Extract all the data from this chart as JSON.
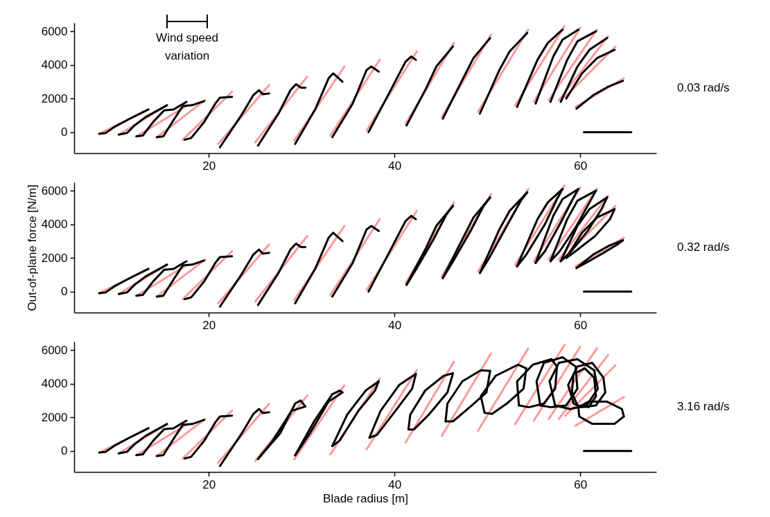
{
  "chart_data": [
    {
      "type": "line",
      "annotations": [
        "0.03 rad/s",
        "Wind speed variation"
      ],
      "xlim": [
        5.5,
        68.2
      ],
      "ylim": [
        -1250,
        6500
      ],
      "xticks": [
        20,
        40,
        60
      ],
      "yticks": [
        0,
        2000,
        4000,
        6000
      ],
      "series": [
        {
          "color": "#ff9999",
          "x": [
            8.2,
            13.5,
            null,
            10.3,
            15.5,
            null,
            12.2,
            17.7,
            null,
            14.4,
            19.6,
            null,
            17.2,
            22.5,
            null,
            21,
            26.5,
            null,
            25,
            30.6,
            null,
            29.2,
            34.6,
            null,
            33.1,
            38.4,
            null,
            37,
            42.4,
            null,
            41.2,
            46.4,
            null,
            45.1,
            50.4,
            null,
            49,
            54.4,
            null,
            53,
            58.3,
            null,
            55,
            60,
            null,
            56.6,
            61.8,
            null,
            57.7,
            63,
            null,
            58.4,
            63.8,
            null,
            59.5,
            64.7
          ],
          "values": [
            -100,
            1350,
            null,
            -150,
            1600,
            null,
            -250,
            1600,
            null,
            -300,
            1900,
            null,
            -450,
            2400,
            null,
            -700,
            2800,
            null,
            -600,
            3300,
            null,
            -500,
            3900,
            null,
            -200,
            4300,
            null,
            100,
            4800,
            null,
            500,
            5300,
            null,
            900,
            5800,
            null,
            1200,
            6100,
            null,
            1600,
            6300,
            null,
            1800,
            6200,
            null,
            1900,
            6100,
            null,
            1900,
            5700,
            null,
            2100,
            5100,
            null,
            1500,
            3200
          ]
        },
        {
          "color": "#000000",
          "x": [
            8.2,
            8.9,
            9.8,
            11.5,
            13.5
          ],
          "values": [
            -100,
            -50,
            300,
            800,
            1350
          ]
        },
        {
          "color": "#000000",
          "x": [
            10.3,
            11.2,
            12.0,
            13.2,
            15.5
          ],
          "values": [
            -150,
            -50,
            400,
            900,
            1600
          ]
        },
        {
          "color": "#000000",
          "x": [
            12.2,
            12.9,
            14.0,
            15.2,
            16.2,
            17.6
          ],
          "values": [
            -250,
            -200,
            600,
            1300,
            1350,
            1800
          ]
        },
        {
          "color": "#000000",
          "x": [
            14.4,
            15.1,
            16.3,
            17.2,
            18.2,
            19.5
          ],
          "values": [
            -300,
            -250,
            800,
            1550,
            1600,
            1850
          ]
        },
        {
          "color": "#000000",
          "x": [
            17.4,
            18.1,
            19.5,
            20.7,
            21.2,
            22.5
          ],
          "values": [
            -450,
            -350,
            600,
            1700,
            2050,
            2100
          ]
        },
        {
          "color": "#000000",
          "x": [
            21.2,
            23.5,
            24.8,
            25.4,
            25.8,
            26.5
          ],
          "values": [
            -900,
            1000,
            2200,
            2500,
            2250,
            2300
          ]
        },
        {
          "color": "#000000",
          "x": [
            25.3,
            27.5,
            28.8,
            29.4,
            29.9,
            30.4
          ],
          "values": [
            -800,
            1100,
            2500,
            2850,
            2650,
            2650
          ]
        },
        {
          "color": "#000000",
          "x": [
            29.3,
            31.5,
            32.9,
            33.4,
            34.4
          ],
          "values": [
            -700,
            1400,
            3200,
            3500,
            3000
          ]
        },
        {
          "color": "#000000",
          "x": [
            33.3,
            35.5,
            37.0,
            37.5,
            38.3
          ],
          "values": [
            -300,
            1700,
            3700,
            3900,
            3600
          ]
        },
        {
          "color": "#000000",
          "x": [
            37.2,
            39.4,
            41.2,
            41.8,
            42.3
          ],
          "values": [
            0,
            2300,
            4200,
            4500,
            4300
          ]
        },
        {
          "color": "#000000",
          "x": [
            41.3,
            43.4,
            44.5,
            46.3
          ],
          "values": [
            400,
            2600,
            3900,
            5100
          ]
        },
        {
          "color": "#000000",
          "x": [
            45.2,
            47.3,
            48.5,
            50.3
          ],
          "values": [
            800,
            3100,
            4400,
            5600
          ]
        },
        {
          "color": "#000000",
          "x": [
            49.2,
            51.3,
            52.4,
            54.3
          ],
          "values": [
            1100,
            3700,
            4800,
            5900
          ]
        },
        {
          "color": "#000000",
          "x": [
            53.2,
            55.4,
            56.5,
            58.1
          ],
          "values": [
            1500,
            4300,
            5300,
            6100
          ]
        },
        {
          "color": "#000000",
          "x": [
            55.2,
            57.1,
            58.1,
            59.8
          ],
          "values": [
            1700,
            4500,
            5500,
            6100
          ]
        },
        {
          "color": "#000000",
          "x": [
            56.8,
            58.6,
            59.7,
            61.7
          ],
          "values": [
            1800,
            4300,
            5400,
            6000
          ]
        },
        {
          "color": "#000000",
          "x": [
            57.9,
            59.7,
            61.0,
            62.9
          ],
          "values": [
            1800,
            3900,
            4900,
            5600
          ]
        },
        {
          "color": "#000000",
          "x": [
            58.5,
            60.2,
            61.8,
            63.7
          ],
          "values": [
            2000,
            3500,
            4400,
            4900
          ]
        },
        {
          "color": "#000000",
          "x": [
            59.6,
            61.4,
            63.0,
            64.6
          ],
          "values": [
            1400,
            2200,
            2700,
            3050
          ]
        },
        {
          "color": "#000000",
          "x": [
            60.4,
            65.5
          ],
          "values": [
            0,
            0
          ]
        }
      ]
    },
    {
      "type": "line",
      "ylabel": "Out-of-plane force [N/m]",
      "annotations": [
        "0.32 rad/s"
      ],
      "xlim": [
        5.5,
        68.2
      ],
      "ylim": [
        -1250,
        6500
      ],
      "xticks": [
        20,
        40,
        60
      ],
      "yticks": [
        0,
        2000,
        4000,
        6000
      ],
      "series": [
        {
          "color": "#ff9999",
          "x": [
            8.2,
            13.5,
            null,
            10.3,
            15.5,
            null,
            12.2,
            17.7,
            null,
            14.4,
            19.6,
            null,
            17.2,
            22.5,
            null,
            21,
            26.5,
            null,
            25,
            30.6,
            null,
            29.2,
            34.6,
            null,
            33.1,
            38.4,
            null,
            37,
            42.4,
            null,
            41.2,
            46.4,
            null,
            45.1,
            50.4,
            null,
            49,
            54.4,
            null,
            53,
            58.3,
            null,
            55,
            60,
            null,
            56.6,
            61.8,
            null,
            57.7,
            63,
            null,
            58.4,
            63.8,
            null,
            59.5,
            64.7
          ],
          "values": [
            -100,
            1350,
            null,
            -150,
            1600,
            null,
            -250,
            1600,
            null,
            -300,
            1900,
            null,
            -450,
            2400,
            null,
            -700,
            2800,
            null,
            -600,
            3300,
            null,
            -500,
            3900,
            null,
            -200,
            4300,
            null,
            100,
            4800,
            null,
            500,
            5300,
            null,
            900,
            5800,
            null,
            1200,
            6100,
            null,
            1600,
            6300,
            null,
            1800,
            6200,
            null,
            1900,
            6100,
            null,
            1900,
            5700,
            null,
            2100,
            5100,
            null,
            1500,
            3200
          ]
        },
        {
          "color": "#000000",
          "x": [
            8.2,
            8.9,
            9.8,
            11.5,
            13.5
          ],
          "values": [
            -100,
            -50,
            300,
            800,
            1350
          ]
        },
        {
          "color": "#000000",
          "x": [
            10.3,
            11.2,
            12.0,
            13.2,
            15.5
          ],
          "values": [
            -150,
            -50,
            400,
            900,
            1600
          ]
        },
        {
          "color": "#000000",
          "x": [
            12.2,
            12.9,
            14.0,
            15.2,
            16.2,
            17.6
          ],
          "values": [
            -250,
            -200,
            600,
            1300,
            1350,
            1800
          ]
        },
        {
          "color": "#000000",
          "x": [
            14.4,
            15.1,
            16.3,
            17.2,
            18.2,
            19.5
          ],
          "values": [
            -300,
            -250,
            800,
            1550,
            1600,
            1850
          ]
        },
        {
          "color": "#000000",
          "x": [
            17.4,
            18.1,
            19.5,
            20.7,
            21.2,
            22.5
          ],
          "values": [
            -450,
            -350,
            600,
            1700,
            2050,
            2100
          ]
        },
        {
          "color": "#000000",
          "x": [
            21.2,
            23.5,
            24.8,
            25.4,
            25.8,
            26.5
          ],
          "values": [
            -900,
            1000,
            2200,
            2500,
            2250,
            2300
          ]
        },
        {
          "color": "#000000",
          "x": [
            25.3,
            27.5,
            28.8,
            29.4,
            29.9,
            30.4
          ],
          "values": [
            -800,
            1100,
            2500,
            2850,
            2650,
            2650
          ]
        },
        {
          "color": "#000000",
          "x": [
            29.3,
            31.5,
            32.9,
            33.4,
            34.4
          ],
          "values": [
            -700,
            1400,
            3200,
            3500,
            3000
          ]
        },
        {
          "color": "#000000",
          "x": [
            33.3,
            35.5,
            37.0,
            37.5,
            38.3
          ],
          "values": [
            -300,
            1700,
            3700,
            3900,
            3600
          ]
        },
        {
          "color": "#000000",
          "x": [
            37.2,
            39.4,
            41.2,
            41.8,
            42.3
          ],
          "values": [
            0,
            2300,
            4200,
            4500,
            4300
          ]
        },
        {
          "color": "#000000",
          "x": [
            41.3,
            43.4,
            44.5,
            46.3
          ],
          "values": [
            400,
            2600,
            3900,
            5100
          ]
        },
        {
          "color": "#000000",
          "x": [
            46.3,
            45.6,
            44.2,
            42.3,
            41.3
          ],
          "values": [
            5100,
            4600,
            3100,
            1300,
            400
          ]
        },
        {
          "color": "#000000",
          "x": [
            45.2,
            47.3,
            48.5,
            50.3
          ],
          "values": [
            800,
            3100,
            4400,
            5600
          ]
        },
        {
          "color": "#000000",
          "x": [
            50.3,
            49.6,
            48.2,
            46.2,
            45.2
          ],
          "values": [
            5600,
            5100,
            3600,
            1700,
            800
          ]
        },
        {
          "color": "#000000",
          "x": [
            49.2,
            51.3,
            52.4,
            54.3
          ],
          "values": [
            1100,
            3700,
            4800,
            5900
          ]
        },
        {
          "color": "#000000",
          "x": [
            54.3,
            53.6,
            52.2,
            50.2,
            49.2
          ],
          "values": [
            5900,
            5400,
            4000,
            2000,
            1100
          ]
        },
        {
          "color": "#000000",
          "x": [
            53.2,
            55.4,
            56.5,
            58.1
          ],
          "values": [
            1500,
            4300,
            5300,
            6100
          ]
        },
        {
          "color": "#000000",
          "x": [
            58.1,
            57.5,
            56.2,
            54.2,
            53.2
          ],
          "values": [
            6100,
            5500,
            4000,
            2200,
            1500
          ]
        },
        {
          "color": "#000000",
          "x": [
            55.2,
            57.1,
            58.1,
            59.8
          ],
          "values": [
            1700,
            4500,
            5500,
            6100
          ]
        },
        {
          "color": "#000000",
          "x": [
            59.8,
            59.2,
            57.9,
            56.2,
            55.2
          ],
          "values": [
            6100,
            5500,
            4100,
            2400,
            1700
          ]
        },
        {
          "color": "#000000",
          "x": [
            56.8,
            58.6,
            59.7,
            61.7
          ],
          "values": [
            1800,
            4300,
            5400,
            6000
          ]
        },
        {
          "color": "#000000",
          "x": [
            61.7,
            61.0,
            59.6,
            57.8,
            56.8
          ],
          "values": [
            6000,
            5300,
            3900,
            2400,
            1800
          ]
        },
        {
          "color": "#000000",
          "x": [
            57.9,
            59.7,
            61.0,
            62.9
          ],
          "values": [
            1800,
            3900,
            4900,
            5600
          ]
        },
        {
          "color": "#000000",
          "x": [
            62.9,
            62.3,
            60.8,
            58.9,
            57.9
          ],
          "values": [
            5600,
            4900,
            3600,
            2300,
            1800
          ]
        },
        {
          "color": "#000000",
          "x": [
            58.5,
            60.2,
            61.8,
            63.7
          ],
          "values": [
            2000,
            3500,
            4400,
            4900
          ]
        },
        {
          "color": "#000000",
          "x": [
            63.7,
            63.2,
            61.6,
            59.5,
            58.5
          ],
          "values": [
            4900,
            4300,
            3300,
            2400,
            2000
          ]
        },
        {
          "color": "#000000",
          "x": [
            59.6,
            61.4,
            63.0,
            64.6
          ],
          "values": [
            1400,
            2200,
            2700,
            3050
          ]
        },
        {
          "color": "#000000",
          "x": [
            64.6,
            64.0,
            62.5,
            60.6,
            59.6
          ],
          "values": [
            3050,
            2800,
            2300,
            1700,
            1400
          ]
        },
        {
          "color": "#000000",
          "x": [
            60.4,
            65.5
          ],
          "values": [
            0,
            0
          ]
        }
      ]
    },
    {
      "type": "line",
      "xlabel": "Blade radius [m]",
      "annotations": [
        "3.16 rad/s"
      ],
      "xlim": [
        5.5,
        68.2
      ],
      "ylim": [
        -1250,
        6500
      ],
      "xticks": [
        20,
        40,
        60
      ],
      "yticks": [
        0,
        2000,
        4000,
        6000
      ],
      "series": [
        {
          "color": "#ff9999",
          "x": [
            8.2,
            13.5,
            null,
            10.3,
            15.5,
            null,
            12.2,
            17.7,
            null,
            14.4,
            19.6,
            null,
            17.2,
            22.5,
            null,
            21,
            26.5,
            null,
            25,
            30.6,
            null,
            29.2,
            34.6,
            null,
            33.1,
            38.4,
            null,
            37,
            42.4,
            null,
            41.2,
            46.4,
            null,
            45.1,
            50.4,
            null,
            49,
            54.4,
            null,
            53,
            58.3,
            null,
            55,
            60,
            null,
            56.6,
            61.8,
            null,
            57.7,
            63,
            null,
            58.4,
            63.8,
            null,
            59.5,
            64.7
          ],
          "values": [
            -100,
            1350,
            null,
            -150,
            1600,
            null,
            -250,
            1600,
            null,
            -300,
            1900,
            null,
            -450,
            2400,
            null,
            -700,
            2800,
            null,
            -600,
            3300,
            null,
            -500,
            3900,
            null,
            -200,
            4300,
            null,
            100,
            4800,
            null,
            500,
            5300,
            null,
            900,
            5800,
            null,
            1200,
            6100,
            null,
            1600,
            6300,
            null,
            1800,
            6200,
            null,
            1900,
            6100,
            null,
            1900,
            5700,
            null,
            2100,
            5100,
            null,
            1500,
            3200
          ]
        },
        {
          "color": "#000000",
          "x": [
            8.2,
            8.9,
            9.8,
            11.5,
            13.5
          ],
          "values": [
            -100,
            -50,
            300,
            800,
            1350
          ]
        },
        {
          "color": "#000000",
          "x": [
            10.3,
            11.2,
            12.0,
            13.2,
            15.5
          ],
          "values": [
            -150,
            -50,
            400,
            900,
            1600
          ]
        },
        {
          "color": "#000000",
          "x": [
            12.2,
            12.9,
            14.0,
            15.2,
            16.2,
            17.6
          ],
          "values": [
            -250,
            -200,
            600,
            1300,
            1350,
            1800
          ]
        },
        {
          "color": "#000000",
          "x": [
            14.4,
            15.1,
            16.3,
            17.2,
            18.2,
            19.5
          ],
          "values": [
            -300,
            -250,
            800,
            1550,
            1600,
            1850
          ]
        },
        {
          "color": "#000000",
          "x": [
            17.4,
            18.1,
            19.5,
            20.7,
            21.2,
            22.5
          ],
          "values": [
            -450,
            -350,
            600,
            1700,
            2050,
            2100
          ]
        },
        {
          "color": "#000000",
          "x": [
            21.2,
            23.5,
            24.8,
            25.4,
            25.8,
            26.5
          ],
          "values": [
            -900,
            1000,
            2200,
            2500,
            2250,
            2300
          ]
        },
        {
          "color": "#000000",
          "x": [
            25.3,
            27.7,
            29.3,
            29.9,
            30.4
          ],
          "values": [
            -480,
            1060,
            2820,
            3000,
            2640
          ]
        },
        {
          "color": "#000000",
          "x": [
            30.4,
            28.9,
            26.9,
            25.3
          ],
          "values": [
            2640,
            2380,
            620,
            -480
          ]
        },
        {
          "color": "#000000",
          "x": [
            29.3,
            31.3,
            33.3,
            34.1,
            34.4
          ],
          "values": [
            -260,
            1720,
            3370,
            3590,
            3480
          ]
        },
        {
          "color": "#000000",
          "x": [
            34.4,
            32.9,
            30.9,
            29.3
          ],
          "values": [
            3480,
            2930,
            1060,
            -260
          ]
        },
        {
          "color": "#000000",
          "x": [
            33.3,
            34.9,
            36.9,
            38.3
          ],
          "values": [
            290,
            2160,
            3590,
            4140
          ]
        },
        {
          "color": "#000000",
          "x": [
            38.3,
            37.9,
            36.1,
            34.1,
            33.3
          ],
          "values": [
            4140,
            3590,
            2380,
            620,
            290
          ]
        },
        {
          "color": "#000000",
          "x": [
            37.3,
            38.5,
            40.5,
            42.3
          ],
          "values": [
            790,
            2380,
            3920,
            4580
          ]
        },
        {
          "color": "#000000",
          "x": [
            42.3,
            41.9,
            40.1,
            38.1,
            37.3
          ],
          "values": [
            4580,
            3700,
            2380,
            950,
            790
          ]
        },
        {
          "color": "#000000",
          "x": [
            41.5,
            41.7,
            43.3,
            45.3,
            46.3
          ],
          "values": [
            1280,
            2160,
            3590,
            4470,
            4620
          ]
        },
        {
          "color": "#000000",
          "x": [
            46.3,
            45.7,
            43.7,
            42.1,
            41.5
          ],
          "values": [
            4620,
            3480,
            2160,
            1280,
            1280
          ]
        },
        {
          "color": "#000000",
          "x": [
            45.5,
            45.7,
            47.3,
            49.3,
            50.3
          ],
          "values": [
            1760,
            2820,
            4140,
            4800,
            4760
          ]
        },
        {
          "color": "#000000",
          "x": [
            50.3,
            49.9,
            48.1,
            46.3,
            45.5
          ],
          "values": [
            4760,
            3480,
            2600,
            1760,
            1760
          ]
        },
        {
          "color": "#000000",
          "x": [
            49.7,
            49.3,
            50.9,
            53.3,
            54.2
          ],
          "values": [
            2270,
            3260,
            4470,
            5130,
            4910
          ]
        },
        {
          "color": "#000000",
          "x": [
            54.2,
            53.9,
            52.1,
            50.5,
            49.7
          ],
          "values": [
            4910,
            3700,
            2820,
            2200,
            2270
          ]
        },
        {
          "color": "#000000",
          "x": [
            53.4,
            53.2,
            54.9,
            56.9,
            57.5
          ],
          "values": [
            2710,
            4140,
            5130,
            5460,
            5020
          ]
        },
        {
          "color": "#000000",
          "x": [
            57.5,
            57.3,
            56.1,
            54.5,
            53.4
          ],
          "values": [
            5020,
            3700,
            2820,
            2600,
            2710
          ]
        },
        {
          "color": "#000000",
          "x": [
            55.7,
            55.3,
            56.1,
            58.1,
            59.5
          ],
          "values": [
            2710,
            4140,
            5240,
            5570,
            5020
          ]
        },
        {
          "color": "#000000",
          "x": [
            59.5,
            59.7,
            58.5,
            56.9,
            55.7
          ],
          "values": [
            5020,
            3700,
            2710,
            2600,
            2710
          ]
        },
        {
          "color": "#000000",
          "x": [
            57.3,
            56.7,
            57.7,
            59.7,
            61.5
          ],
          "values": [
            2710,
            4140,
            5240,
            5460,
            4800
          ]
        },
        {
          "color": "#000000",
          "x": [
            61.5,
            61.9,
            60.7,
            58.9,
            57.3
          ],
          "values": [
            4800,
            3700,
            2710,
            2490,
            2710
          ]
        },
        {
          "color": "#000000",
          "x": [
            59.3,
            58.7,
            59.7,
            61.3,
            62.5
          ],
          "values": [
            2820,
            3920,
            5020,
            5240,
            4360
          ]
        },
        {
          "color": "#000000",
          "x": [
            62.5,
            62.7,
            61.7,
            60.1,
            59.3
          ],
          "values": [
            4360,
            3480,
            2710,
            2600,
            2820
          ]
        },
        {
          "color": "#000000",
          "x": [
            59.1,
            59.3,
            60.5,
            61.5
          ],
          "values": [
            3480,
            4580,
            4910,
            4360
          ]
        },
        {
          "color": "#000000",
          "x": [
            61.5,
            61.7,
            60.9,
            59.7,
            59.1
          ],
          "values": [
            4360,
            3260,
            2600,
            2710,
            3480
          ]
        },
        {
          "color": "#000000",
          "x": [
            59.8,
            60.9,
            62.9,
            64.5,
            64.7
          ],
          "values": [
            2600,
            2930,
            2930,
            2490,
            2050
          ]
        },
        {
          "color": "#000000",
          "x": [
            64.7,
            63.7,
            61.3,
            59.9,
            59.8
          ],
          "values": [
            2050,
            1610,
            1610,
            2050,
            2600
          ]
        },
        {
          "color": "#000000",
          "x": [
            60.4,
            65.5
          ],
          "values": [
            0,
            0
          ]
        }
      ]
    }
  ]
}
